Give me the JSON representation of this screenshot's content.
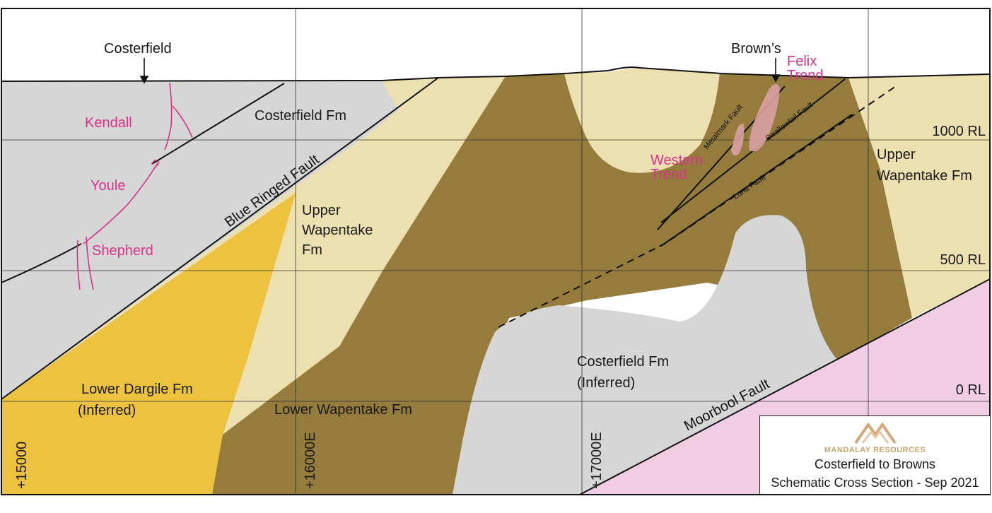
{
  "formations": {
    "costerfield_upper": "Costerfield Fm",
    "upper_wapentake_left": [
      "Upper",
      "Wapentake",
      "Fm"
    ],
    "upper_wapentake_right": [
      "Upper",
      "Wapentake Fm"
    ],
    "lower_dargile": [
      "Lower Dargile Fm",
      "(Inferred)"
    ],
    "lower_wapentake": "Lower Wapentake Fm",
    "costerfield_inferred": [
      "Costerfield Fm",
      "(Inferred)"
    ]
  },
  "faults": {
    "blue_ringed": "Blue Ringed Fault",
    "moorbool": "Moorbool Fault",
    "metalmark": "Metalmark Fault",
    "swallowtail": "Swallowtail Fault",
    "luna": "Luna Fault"
  },
  "locations": {
    "costerfield": "Costerfield",
    "browns": "Brown’s"
  },
  "veins": {
    "kendall": "Kendall",
    "youle": "Youle",
    "shepherd": "Shepherd",
    "felix": [
      "Felix",
      "Trend"
    ],
    "western": [
      "Western",
      "Trend"
    ]
  },
  "rl_levels": [
    "1000 RL",
    "500 RL",
    "0 RL"
  ],
  "eastings": [
    "+15000",
    "+16000E",
    "+17000E"
  ],
  "legend": {
    "company": "MANDALAY RESOURCES",
    "title": "Costerfield to Browns",
    "subtitle": "Schematic Cross Section - Sep 2021"
  },
  "colors": {
    "grey_costerfield": "#d6d6d6",
    "tan_wapentake": "#ede0b0",
    "brown_lower_wapentake": "#957c3d",
    "yellow_dargile": "#ecc23f",
    "pink_basement": "#f0cde2",
    "vein_pink": "#d6338c",
    "trend_pink": "#d9a0a3"
  }
}
